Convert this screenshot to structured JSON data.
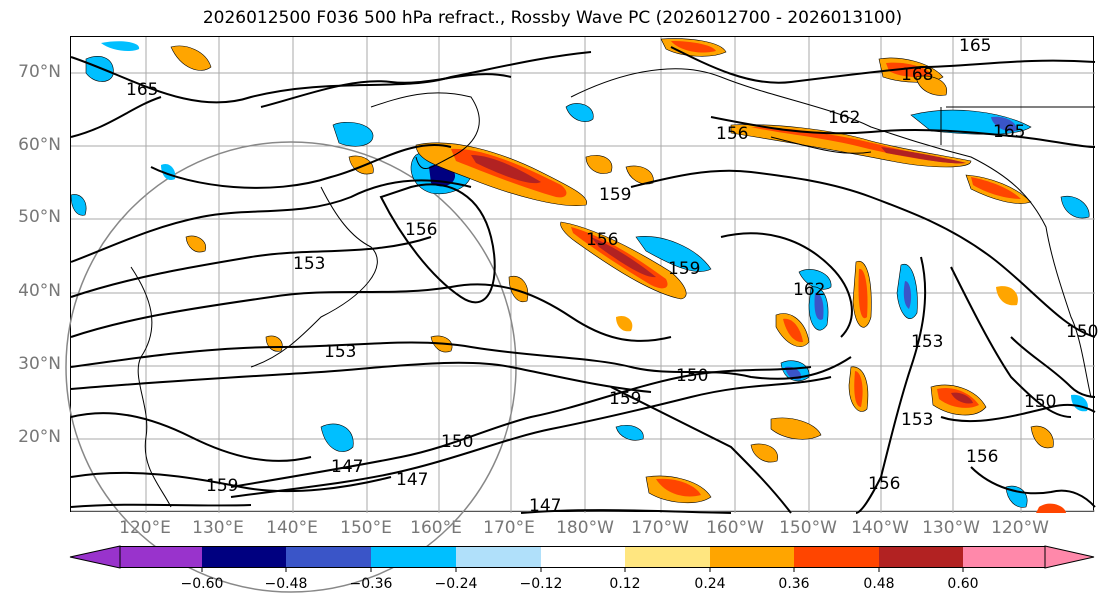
{
  "title": "2026012500 F036 500 hPa refract., Rossby Wave PC (2026012700 - 2026013100)",
  "lat_labels": [
    "70°N",
    "60°N",
    "50°N",
    "40°N",
    "30°N",
    "20°N"
  ],
  "lon_labels": [
    "120°E",
    "130°E",
    "140°E",
    "150°E",
    "160°E",
    "170°E",
    "180°W",
    "170°W",
    "160°W",
    "150°W",
    "140°W",
    "130°W",
    "120°W"
  ],
  "contour_labels": [
    "165",
    "168",
    "162",
    "156",
    "165",
    "159",
    "156",
    "159",
    "165",
    "162",
    "153",
    "150",
    "159",
    "153",
    "150",
    "153",
    "150",
    "147",
    "147",
    "159",
    "147",
    "156",
    "150",
    "156",
    "156",
    "153"
  ],
  "colorbar": {
    "ticks": [
      "−0.60",
      "−0.48",
      "−0.36",
      "−0.24",
      "−0.12",
      "0.12",
      "0.24",
      "0.36",
      "0.48",
      "0.60"
    ],
    "colors": [
      "#9933cc",
      "#000080",
      "#3a55c8",
      "#00bfff",
      "#b0e0fa",
      "#ffffff",
      "#ffe680",
      "#ffa500",
      "#ff4500",
      "#b22222",
      "#ff88aa"
    ]
  }
}
